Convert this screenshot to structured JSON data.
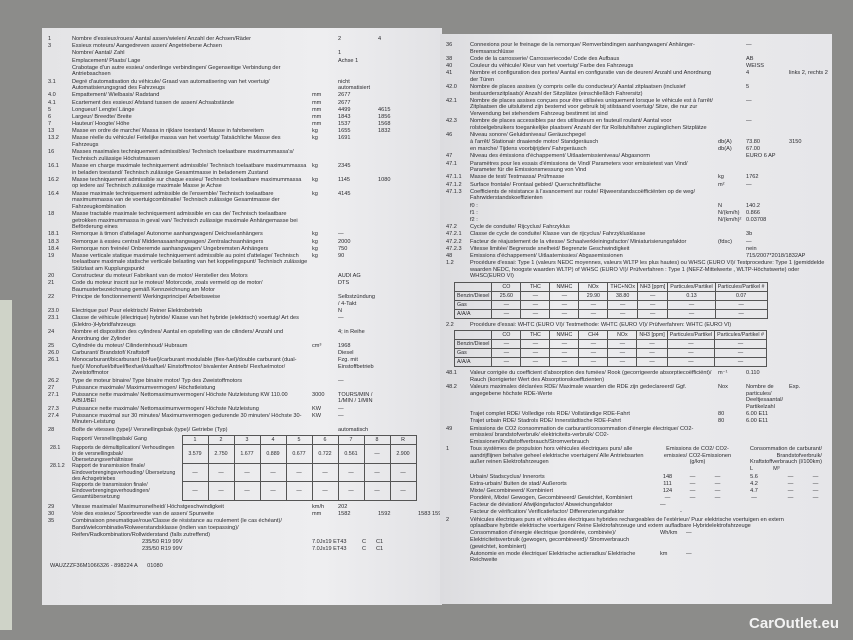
{
  "left_rows": [
    [
      "1",
      "Nombre d'essieux/roues/ Aantal assen/wielen/ Anzahl der Achsen/Räder",
      "",
      "2",
      "4"
    ],
    [
      "3",
      "Essieux moteurs/ Aangedreven assen/ Angetriebene Achsen",
      "",
      "",
      ""
    ],
    [
      "",
      "Nombre/ Aantal/ Zahl",
      "",
      "1",
      ""
    ],
    [
      "",
      "Emplacement/ Plaats/ Lage",
      "",
      "Achse 1",
      ""
    ],
    [
      "",
      "Crabotage d'un autre essieu/ onderlinge verbindingen/ Gegenseitige Verbindung der Antriebsachsen",
      "",
      "",
      ""
    ],
    [
      "3.1",
      "Degré d'automatisation du véhicule/ Graad van automatisering van het voertuig/ Automatisierungsgrad des Fahrzeugs",
      "",
      "nicht automatisiert",
      ""
    ],
    [
      "4.0",
      "Empattement/ Wielbasis/ Radstand",
      "mm",
      "2677",
      ""
    ],
    [
      "4.1",
      "Ecartement des essieux/ Afstand tussen de assen/ Achsabstände",
      "mm",
      "2677",
      ""
    ],
    [
      "5",
      "Longueur/ Lengte/ Länge",
      "mm",
      "4499",
      "4615"
    ],
    [
      "6",
      "Largeur/ Breedte/ Breite",
      "mm",
      "1843",
      "1856"
    ],
    [
      "7",
      "Hauteur/ Hoogte/ Höhe",
      "mm",
      "1537",
      "1568"
    ],
    [
      "13",
      "Masse en ordre de marche/ Massa in rijklare toestand/ Masse in fahrbereitem",
      "kg",
      "1655",
      "1832"
    ],
    [
      "13.2",
      "Masse réelle du véhicule/ Feitelijke massa van het voertuig/ Tatsächliche Masse des Fahrzeugs",
      "kg",
      "1691",
      ""
    ],
    [
      "16",
      "Masses maximales techniquement admissibles/ Technisch toelaatbare maximummassa's/ Technisch zulässige Höchstmassen",
      "",
      "",
      ""
    ],
    [
      "16.1",
      "Masse en charge maximale techniquement admissible/ Technisch toelaatbare maximummassa in beladen toestand/ Technisch zulässige Gesamtmasse in beladenem Zustand",
      "kg",
      "2345",
      ""
    ],
    [
      "16.2",
      "Masse techniquement admissible sur chaque essieu/ Technisch toelaatbare maximummassa op iedere as/ Technisch zulässige maximale Masse je Achse",
      "kg",
      "1145",
      "1080"
    ],
    [
      "16.4",
      "Masse maximale techniquement admissible de l'ensemble/ Technisch toelaatbare maximummassa van de voertuigcombinatie/ Technisch zulässige Gesamtmasse der Fahrzeugkombination",
      "kg",
      "4145",
      ""
    ],
    [
      "18",
      "Masse tractable maximale techniquement admissible en cas de/ Technisch toelaatbare getrokken maximummassa in geval van/ Technisch zulässige maximale Anhängemasse bei Beförderung eines",
      "",
      "",
      ""
    ],
    [
      "18.1",
      "Remorque à timon d'attelage/ Autonome aanhangwagen/ Deichselanhängers",
      "kg",
      "—",
      ""
    ],
    [
      "18.3",
      "Remorque à essieu central/ Middenasaanhangwagen/ Zentralachsanhängers",
      "kg",
      "2000",
      ""
    ],
    [
      "18.4",
      "Remorque non freinée/ Onberemde aanhangwagen/ Ungebremsten Anhängers",
      "kg",
      "750",
      ""
    ],
    [
      "19",
      "Masse verticale statique maximale techniquement admissible au point d'attelage/ Technisch toelaatbare maximale statische verticale belasting van het koppelingspunt/ Technisch zulässige Stützlast am Kupplungspunkt",
      "kg",
      "90",
      ""
    ],
    [
      "20",
      "Constructeur du moteur/ Fabrikant van de motor/ Hersteller des Motors",
      "",
      "AUDI AG",
      ""
    ],
    [
      "21",
      "Code du moteur inscrit sur le moteur/ Motorcode, zoals vermeld op de motor/ Baumusterbezeichnung gemäß Kennzeichnung am Motor",
      "",
      "DTS",
      ""
    ],
    [
      "22",
      "Principe de fonctionnement/ Werkingsprincipe/ Arbeitsweise",
      "",
      "Selbstzündung / 4-Takt",
      ""
    ],
    [
      "23.0",
      "Electrique pur/ Puur elektrisch/ Reiner Elektrobetrieb",
      "",
      "N",
      ""
    ],
    [
      "23.1",
      "Classe de véhicule (électrique) hybride/ Klasse van het hybride (elektrisch) voertuig/ Art des (Elektro-)Hybridfahrzeugs",
      "",
      "—",
      ""
    ],
    [
      "24",
      "Nombre et disposition des cylindres/ Aantal en opstelling van de cilinders/ Anzahl und Anordnung der Zylinder",
      "",
      "4; in Reihe",
      ""
    ],
    [
      "25",
      "Cylindrée du moteur/ Cilinderinhoud/ Hubraum",
      "cm³",
      "1968",
      ""
    ],
    [
      "26.0",
      "Carburant/ Brandstof/ Kraftstoff",
      "",
      "Diesel",
      ""
    ],
    [
      "26.1",
      "Monocarburant/bicarburant (bi-fuel)/carburant modulable (flex-fuel)/double carburant (dual-fuel)/ Monofuel/bifuel/flexfuel/dualfuel/ Einstoffmotor/ bivalenter Antrieb/ Flexfuelmotor/ Zweistoffmotor",
      "",
      "Fzg. mit Einstoffbetrieb",
      ""
    ],
    [
      "26.2",
      "Type de moteur binaire/ Type binaire motor/ Typ des Zweistoffmotors",
      "",
      "—",
      ""
    ],
    [
      "27",
      "Puissance maximale/ Maximumvermogen/ Höchstleistung",
      "",
      "",
      ""
    ],
    [
      "27.1",
      "Puissance nette maximale/ Nettomaximumvermogen/ Höchste Nutzleistung KW 110.00 A/BIJ/BEI",
      "3000",
      "TOURS/MIN / 1/MIN / 1/MIN",
      ""
    ],
    [
      "27.3",
      "Puissance nette maximale/ Nettomaximumvermogen/ Höchste Nutzleistung",
      "KW",
      "—",
      ""
    ],
    [
      "27.4",
      "Puissance maximal sur 30 minutes/ Maximumvermogen gedurende 30 minuten/ Höchste 30-Minuten-Leistung",
      "KW",
      "—",
      ""
    ],
    [
      "28",
      "Boîte de vitesses (type)/ Versnellingsbak (type)/ Getriebe (Typ)",
      "",
      "automatisch",
      ""
    ]
  ],
  "gear": {
    "label_gang": "Rapport/ Versnellingsbak/ Gang",
    "headers": [
      "1",
      "2",
      "3",
      "4",
      "5",
      "6",
      "7",
      "8",
      "R"
    ],
    "rows": [
      {
        "num": "28.1",
        "label": "Rapports de démultiplication/ Verhoudingen in de versnellingsbak/ Übersetzungsverhältnisse",
        "values": [
          "3.579",
          "2.750",
          "1.677",
          "0.889",
          "0.677",
          "0.722",
          "0.561",
          "—",
          "2.900"
        ]
      },
      {
        "num": "28.1.2",
        "label": "Rapport de transmission finale/ Eindoverbrengingsverhouding/ Übersetzung des Achsgetriebes",
        "values": [
          "—",
          "—",
          "—",
          "—",
          "—",
          "—",
          "—",
          "—",
          "—"
        ]
      },
      {
        "num": "",
        "label": "Rapports de transmission finale/ Eindoverbrengingsverhoudingen/ Gesamtübersetzung",
        "values": [
          "—",
          "—",
          "—",
          "—",
          "—",
          "—",
          "—",
          "—",
          "—"
        ]
      }
    ]
  },
  "left_rows2": [
    [
      "29",
      "Vitesse maximale/ Maximumsnelheid/ Höchstgeschwindigkeit",
      "km/h",
      "202",
      "",
      ""
    ],
    [
      "30",
      "Voie des essieux/ Spoorbreedte van de assen/ Spurweite",
      "mm",
      "1582",
      "1592",
      "1583 1597"
    ],
    [
      "35",
      "Combinaison pneumatique/roue/Classe de résistance au roulement (le cas échéant)/ Band/wielcombinatie/Rolweerstandsklasse (indien van toepassing)/ Reifen/Radkombination/Rollwiderstand (falls zutreffend)",
      "",
      "",
      "",
      ""
    ]
  ],
  "tyres": [
    [
      "235/50 R19 99V",
      "7.0Jx19 ET43",
      "C",
      "C1"
    ],
    [
      "235/50 R19 99V",
      "7.0Jx19 ET43",
      "C",
      "C1"
    ]
  ],
  "footer_id": "WAUZZZF36M1066326 - 898224 A",
  "footer_code": "01080",
  "right_rows": [
    [
      "36",
      "Connexions pour le freinage de la remorque/ Remverbindingen aanhangwagen/ Anhänger-Bremsanschlüsse",
      "",
      "—",
      ""
    ],
    [
      "38",
      "Code de la carrosserie/ Carrosseriecode/ Code des Aufbaus",
      "",
      "AB",
      ""
    ],
    [
      "40",
      "Couleur du véhicule/ Kleur van het voertuig/ Farbe des Fahrzeugs",
      "",
      "WEISS",
      ""
    ],
    [
      "41",
      "Nombre et configuration des portes/ Aantal en configuratie van de deuren/ Anzahl und Anordnung der Türen",
      "",
      "4",
      "links 2, rechts 2"
    ],
    [
      "42.0",
      "Nombre de places assises (y compris celle du conducteur)/ Aantal zitplaatsen (inclusief bestuurderszitplaats)/ Anzahl der Sitzplätze (einschließlich Fahrersitz)",
      "",
      "5",
      ""
    ],
    [
      "42.1",
      "Nombre de places assises conçues pour être utilisées uniquement lorsque le véhicule est à l'arrêt/ Zitplaatsen die uitsluitend zijn bestemd voor gebruik bij stilstaand voertuig/ Sitze, die nur zur Verwendung bei stehendem Fahrzeug bestimmt ist sind",
      "",
      "—",
      ""
    ],
    [
      "42.3",
      "Nombre de places accessibles par des utilisateurs en fauteuil roulant/ Aantal voor rolstoelgebruikers toegankelijke plaatsen/ Anzahl der für Rollstuhlfahrer zugänglichen Sitzplätze",
      "",
      "—",
      ""
    ],
    [
      "46",
      "Niveau sonore/ Geluidsniveau/ Geräuschpegel",
      "",
      "",
      ""
    ],
    [
      "",
      "à l'arrêt/ Stationair draaiende motor/ Standgeräusch",
      "db(A)",
      "73.80",
      "3150"
    ],
    [
      "",
      "en marche/ Tijdens voorbijrijden/ Fahrgeräusch",
      "db(A)",
      "67.00",
      ""
    ],
    [
      "47",
      "Niveau des émissions d'échappement/ Uitlaatemissieniveau/ Abgasnorm",
      "",
      "EURO 6 AP",
      ""
    ],
    [
      "47.1",
      "Paramètres pour les essais d'émissions de Vind/ Parameters voor emissietest van Vind/ Parameter für die Emissionsmessung von Vind",
      "",
      "",
      ""
    ],
    [
      "47.1.1",
      "Masse de test/ Testmassa/ Prüfmasse",
      "kg",
      "1762",
      ""
    ],
    [
      "47.1.2",
      "Surface frontale/ Frontaal gebied/ Querschnittsfläche",
      "m²",
      "—",
      ""
    ],
    [
      "47.1.3",
      "Coefficients de résistance à l'avancement sur route/ Rijweerstandscoëfficiënten op de weg/ Fahrwiderstandskoeffizienten",
      "",
      "",
      ""
    ],
    [
      "",
      "f0 :",
      "N",
      "140.2",
      ""
    ],
    [
      "",
      "f1 :",
      "N/(km/h)",
      "0.866",
      ""
    ],
    [
      "",
      "f2 :",
      "N/(km/h)²",
      "0.03708",
      ""
    ],
    [
      "47.2",
      "Cycle de conduite/ Rijcyclus/ Fahrzyklus",
      "",
      "",
      ""
    ],
    [
      "47.2.1",
      "Classe de cycle de conduite/ Klasse van de rijcyclus/ Fahrzyklusklasse",
      "",
      "3b",
      ""
    ],
    [
      "47.2.2",
      "Facteur de réajustement de la vitesse/ Schaalverkleiningsfactor/ Miniaturisierungsfaktor",
      "(fdsc)",
      "—",
      ""
    ],
    [
      "47.2.3",
      "Vitesse limitée/ Begrensde snelheid/ Begrenzte Geschwindigkeit",
      "",
      "nein",
      ""
    ],
    [
      "48",
      "Emissions d'échappement/ Uitlaatemissies/ Abgasemissionen",
      "",
      "715/2007*2018/1832AP",
      ""
    ]
  ],
  "test1": {
    "num": "1.2",
    "label": "Procédure d'essai: Type 1 (valeurs NEDC moyennes, valeurs WLTP les plus hautes) ou WHSC (EURO VI)/ Testprocedure: Type 1 (gemiddelde waarden NEDC, hoogste waarden WLTP) of WHSC (EURO VI)/ Prüfverfahren : Type 1 (NEFZ-Mittelwerte , WLTP-Höchstwerte) oder WHSC(EURO VI)",
    "headers": [
      "",
      "CO",
      "THC",
      "NMHC",
      "NOx",
      "THC+NOx",
      "NH3 [ppm]",
      "Particules/Partikel",
      "Particules/Partikel #"
    ],
    "rows": [
      [
        "Benzin/Diesel",
        "25.60",
        "—",
        "—",
        "29.90",
        "38.80",
        "—",
        "0.13",
        "0.07"
      ],
      [
        "Gas",
        "—",
        "—",
        "—",
        "—",
        "—",
        "—",
        "—",
        "—"
      ],
      [
        "A/A/A",
        "—",
        "—",
        "—",
        "—",
        "—",
        "—",
        "—",
        "—"
      ]
    ]
  },
  "test2": {
    "num": "2.2",
    "label": "Procédure d'essai: WHTC (EURO VI)/ Testmethode: WHTC (EURO VI)/ Prüfverfahren: WHTC (EURO VI)",
    "headers": [
      "",
      "CO",
      "THC",
      "NMHC",
      "CH4",
      "NOx",
      "NH3 [ppm]",
      "Particules/Partikel",
      "Particules/Partikel #"
    ],
    "rows": [
      [
        "Benzin/Diesel",
        "—",
        "—",
        "—",
        "—",
        "—",
        "—",
        "—",
        "—"
      ],
      [
        "Gas",
        "—",
        "—",
        "—",
        "—",
        "—",
        "—",
        "—",
        "—"
      ],
      [
        "A/A/A",
        "—",
        "—",
        "—",
        "—",
        "—",
        "—",
        "—",
        "—"
      ]
    ]
  },
  "right_rows2": [
    [
      "48.1",
      "Valeur corrigée du coefficient d'absorption des fumées/ Rook (gecorrigeerde absorptiecoëfficiënt)/ Rauch (korrigierter Wert des Absorptionskoeffizienten)",
      "m⁻¹",
      "0.110",
      ""
    ],
    [
      "48.2",
      "Valeurs maximales déclarées RDE/ Maximale waarden die RDE zijn gedeclareerd/ Ggf. angegebene höchste RDE-Werte",
      "Nox",
      "Nombre de particules/ Deeltjesaantal/ Partikelzahl",
      "Exp."
    ],
    [
      "",
      "Trajet complet RDE/ Volledige rols RDE/ Vollständige RDE-Fahrt",
      "80",
      "6.00 E11",
      ""
    ],
    [
      "",
      "Trajet urbain RDE/ Stadrols RDE/ Innerstädtische RDE-Fahrt",
      "80",
      "6.00 E11",
      ""
    ],
    [
      "49",
      "Emissions de CO2 /consommation de carburant/consommation d'énergie électrique/ CO2-emissies/ brandstofverbruik/ elektriciteits-verbruik/ CO2-Emissionen/Kraftstoffverbrauch/Stromverbrauch",
      "",
      "",
      ""
    ]
  ],
  "co2": {
    "num": "1",
    "label": "Tous systèmes de propulsion hors véhicules électriques purs/ alle aandrijflijnen behalve geheel elektrische voertuigen/ Alle Antriebsarten außer reinen Elektrofahrzeugen",
    "col1": "Emissions de CO2/ CO2-emissies/ CO2-Emissionen (g/km)",
    "col2": "Consommation de carburant/ Brandstofverbruik/ Kraftstoffverbrauch (l/100km)",
    "unit_l": "L",
    "unit_m": "M³",
    "rows": [
      [
        "Urbain/ Stadscyclus/ Innerorts",
        "148",
        "—",
        "—",
        "5.6",
        "—",
        "—"
      ],
      [
        "Extra-urbain/ Buiten de stad/ Außerorts",
        "111",
        "—",
        "—",
        "4.2",
        "—",
        "—"
      ],
      [
        "Mixte/ Gecombineerd/ Kombiniert",
        "124",
        "—",
        "—",
        "4.7",
        "—",
        "—"
      ],
      [
        "Pondéré, Mixte/ Gewogen, Gecombineerd/ Gewichtet, Kombiniert",
        "—",
        "—",
        "—",
        "—",
        "—",
        "—"
      ]
    ],
    "deviation": "Facteur de déviation/ Afwijkingsfactor/ Abweichungsfaktor",
    "deviation_val": "—",
    "verification": "Facteur de vérification/ Verificatiefactor/ Differenzierungsfaktor",
    "verification_val": "-"
  },
  "ev": {
    "num": "2",
    "label": "Véhicules électriques purs et véhicules électriques hybrides rechargeables de l'extérieur/ Puur elektrische voertuigen en extern oplaadbare hybride elektrische voertuigen/ Reine Elektrofahrzeuge und extern aufladbare Hybridelektrofahrzeuge",
    "consumption": "Consommation d'énergie électrique (pondérée, combinée)/ Elektriciteitsverbruik (gewogen, gecombineerd)/ Stromverbrauch (gewichtet, kombiniert)",
    "consumption_unit": "Wh/km",
    "consumption_val": "—",
    "range": "Autonomie en mode électrique/ Elektrische actieradius/ Elektrische Reichweite",
    "range_unit": "km",
    "range_val": "—"
  },
  "watermark": "CarOutlet.eu",
  "colors": {
    "background": "#8c8c8a",
    "paper": "#ebebed",
    "text": "#2a2a2e"
  }
}
